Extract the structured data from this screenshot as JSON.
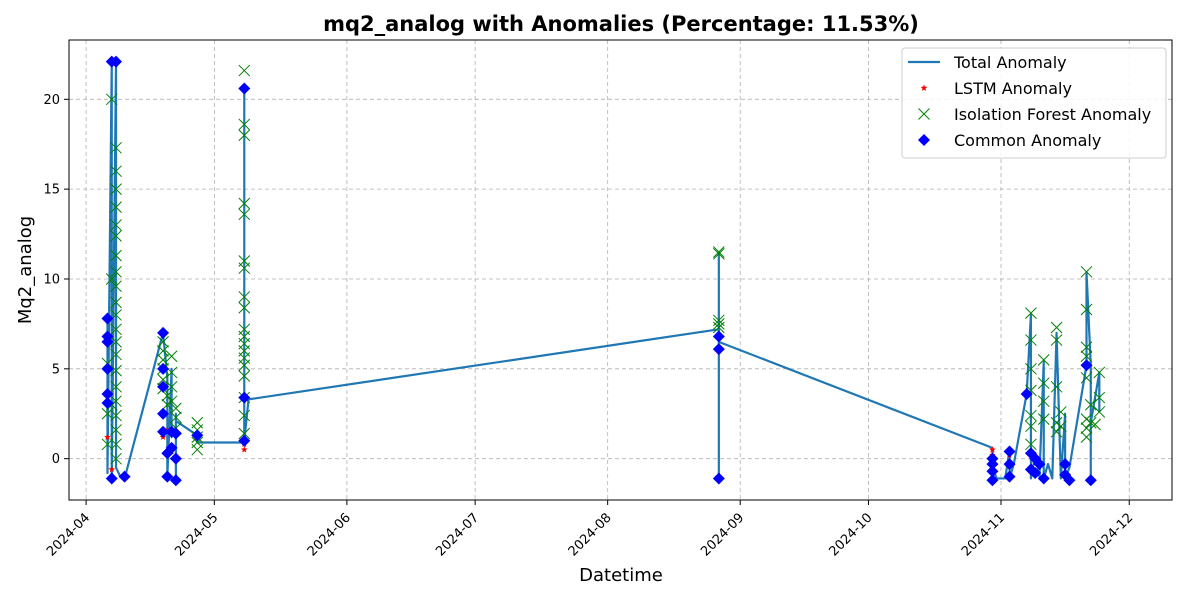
{
  "chart_data": {
    "type": "line",
    "title": "mq2_analog with Anomalies (Percentage: 11.53%)",
    "xlabel": "Datetime",
    "ylabel": "Mq2_analog",
    "xlim": [
      "2024-03-28",
      "2024-12-11"
    ],
    "ylim": [
      -2.3,
      23.3
    ],
    "x_ticks": [
      "2024-04",
      "2024-05",
      "2024-06",
      "2024-07",
      "2024-08",
      "2024-09",
      "2024-10",
      "2024-11",
      "2024-12"
    ],
    "y_ticks": [
      0,
      5,
      10,
      15,
      20
    ],
    "grid": true,
    "legend": {
      "placement": "top-right",
      "entries": [
        {
          "name": "Total Anomaly",
          "marker": "line",
          "color": "#1f77b4"
        },
        {
          "name": "LSTM Anomaly",
          "marker": "star",
          "color": "#ff0000"
        },
        {
          "name": "Isolation Forest Anomaly",
          "marker": "x",
          "color": "#008000"
        },
        {
          "name": "Common Anomaly",
          "marker": "diamond",
          "color": "#0000ff"
        }
      ]
    },
    "series": [
      {
        "name": "Total Anomaly",
        "color": "#1f77b4",
        "points": [
          [
            "2024-04-06",
            7.8
          ],
          [
            "2024-04-06",
            -0.8
          ],
          [
            "2024-04-07",
            22.1
          ],
          [
            "2024-04-07",
            -1.1
          ],
          [
            "2024-04-08",
            22.1
          ],
          [
            "2024-04-08",
            6.5
          ],
          [
            "2024-04-08",
            -0.5
          ],
          [
            "2024-04-09",
            -1.0
          ],
          [
            "2024-04-10",
            -1.1
          ],
          [
            "2024-04-19",
            7.0
          ],
          [
            "2024-04-20",
            4.5
          ],
          [
            "2024-04-20",
            -1.0
          ],
          [
            "2024-04-21",
            5.0
          ],
          [
            "2024-04-21",
            1.2
          ],
          [
            "2024-04-22",
            1.8
          ],
          [
            "2024-04-22",
            2.5
          ],
          [
            "2024-04-22",
            -1.1
          ],
          [
            "2024-04-22",
            2.1
          ],
          [
            "2024-04-27",
            1.3
          ],
          [
            "2024-04-27",
            0.9
          ],
          [
            "2024-05-08",
            0.9
          ],
          [
            "2024-05-08",
            20.6
          ],
          [
            "2024-05-08",
            1.0
          ],
          [
            "2024-05-09",
            3.3
          ],
          [
            "2024-08-27",
            7.2
          ],
          [
            "2024-08-27",
            -1.1
          ],
          [
            "2024-08-27",
            11.5
          ],
          [
            "2024-08-27",
            6.5
          ],
          [
            "2024-10-30",
            0.6
          ],
          [
            "2024-10-30",
            -0.5
          ],
          [
            "2024-10-31",
            -1.1
          ],
          [
            "2024-11-02",
            -1.1
          ],
          [
            "2024-11-03",
            0.5
          ],
          [
            "2024-11-03",
            -1.1
          ],
          [
            "2024-11-04",
            -0.3
          ],
          [
            "2024-11-07",
            3.6
          ],
          [
            "2024-11-08",
            8.0
          ],
          [
            "2024-11-08",
            -1.1
          ],
          [
            "2024-11-09",
            0.2
          ],
          [
            "2024-11-10",
            -1.0
          ],
          [
            "2024-11-11",
            5.4
          ],
          [
            "2024-11-11",
            -1.1
          ],
          [
            "2024-11-12",
            -0.3
          ],
          [
            "2024-11-13",
            -1.1
          ],
          [
            "2024-11-14",
            7.0
          ],
          [
            "2024-11-15",
            -1.1
          ],
          [
            "2024-11-16",
            2.5
          ],
          [
            "2024-11-16",
            -1.1
          ],
          [
            "2024-11-17",
            -0.5
          ],
          [
            "2024-11-21",
            5.2
          ],
          [
            "2024-11-21",
            10.4
          ],
          [
            "2024-11-22",
            5.2
          ],
          [
            "2024-11-22",
            -1.1
          ],
          [
            "2024-11-22",
            2.0
          ],
          [
            "2024-11-24",
            4.8
          ],
          [
            "2024-11-24",
            2.6
          ]
        ]
      },
      {
        "name": "Isolation Forest Anomaly",
        "color": "#008000",
        "points": [
          [
            "2024-04-06",
            5.3
          ],
          [
            "2024-04-06",
            2.5
          ],
          [
            "2024-04-06",
            0.8
          ],
          [
            "2024-04-07",
            20.0
          ],
          [
            "2024-04-07",
            10.0
          ],
          [
            "2024-04-07",
            3.0
          ],
          [
            "2024-04-08",
            17.3
          ],
          [
            "2024-04-08",
            16.0
          ],
          [
            "2024-04-08",
            15.0
          ],
          [
            "2024-04-08",
            14.0
          ],
          [
            "2024-04-08",
            13.0
          ],
          [
            "2024-04-08",
            12.4
          ],
          [
            "2024-04-08",
            11.3
          ],
          [
            "2024-04-08",
            10.4
          ],
          [
            "2024-04-08",
            9.6
          ],
          [
            "2024-04-08",
            8.7
          ],
          [
            "2024-04-08",
            8.0
          ],
          [
            "2024-04-08",
            7.2
          ],
          [
            "2024-04-08",
            6.5
          ],
          [
            "2024-04-08",
            5.8
          ],
          [
            "2024-04-08",
            4.9
          ],
          [
            "2024-04-08",
            4.0
          ],
          [
            "2024-04-08",
            3.2
          ],
          [
            "2024-04-08",
            2.4
          ],
          [
            "2024-04-08",
            1.6
          ],
          [
            "2024-04-08",
            0.8
          ],
          [
            "2024-04-08",
            0.0
          ],
          [
            "2024-04-19",
            6.5
          ],
          [
            "2024-04-19",
            6.0
          ],
          [
            "2024-04-19",
            5.5
          ],
          [
            "2024-04-19",
            5.0
          ],
          [
            "2024-04-19",
            4.4
          ],
          [
            "2024-04-19",
            3.9
          ],
          [
            "2024-04-20",
            3.5
          ],
          [
            "2024-04-20",
            3.0
          ],
          [
            "2024-04-21",
            5.7
          ],
          [
            "2024-04-21",
            4.8
          ],
          [
            "2024-04-21",
            4.0
          ],
          [
            "2024-04-21",
            3.2
          ],
          [
            "2024-04-22",
            2.8
          ],
          [
            "2024-04-22",
            2.3
          ],
          [
            "2024-04-22",
            1.7
          ],
          [
            "2024-04-27",
            2.0
          ],
          [
            "2024-04-27",
            1.6
          ],
          [
            "2024-04-27",
            1.2
          ],
          [
            "2024-04-27",
            0.9
          ],
          [
            "2024-04-27",
            0.5
          ],
          [
            "2024-05-08",
            21.6
          ],
          [
            "2024-05-08",
            18.6
          ],
          [
            "2024-05-08",
            18.0
          ],
          [
            "2024-05-08",
            14.2
          ],
          [
            "2024-05-08",
            13.6
          ],
          [
            "2024-05-08",
            11.0
          ],
          [
            "2024-05-08",
            10.6
          ],
          [
            "2024-05-08",
            9.0
          ],
          [
            "2024-05-08",
            8.4
          ],
          [
            "2024-05-08",
            7.2
          ],
          [
            "2024-05-08",
            6.8
          ],
          [
            "2024-05-08",
            6.4
          ],
          [
            "2024-05-08",
            6.0
          ],
          [
            "2024-05-08",
            5.6
          ],
          [
            "2024-05-08",
            5.2
          ],
          [
            "2024-05-08",
            4.6
          ],
          [
            "2024-05-08",
            3.4
          ],
          [
            "2024-05-08",
            2.4
          ],
          [
            "2024-05-08",
            1.4
          ],
          [
            "2024-08-27",
            11.5
          ],
          [
            "2024-08-27",
            11.4
          ],
          [
            "2024-08-27",
            7.7
          ],
          [
            "2024-08-27",
            7.5
          ],
          [
            "2024-08-27",
            7.3
          ],
          [
            "2024-11-08",
            8.1
          ],
          [
            "2024-11-08",
            6.6
          ],
          [
            "2024-11-08",
            5.0
          ],
          [
            "2024-11-08",
            3.8
          ],
          [
            "2024-11-08",
            2.4
          ],
          [
            "2024-11-08",
            1.8
          ],
          [
            "2024-11-08",
            0.8
          ],
          [
            "2024-11-11",
            5.5
          ],
          [
            "2024-11-11",
            4.2
          ],
          [
            "2024-11-11",
            3.2
          ],
          [
            "2024-11-11",
            2.2
          ],
          [
            "2024-11-14",
            7.3
          ],
          [
            "2024-11-14",
            6.6
          ],
          [
            "2024-11-14",
            4.0
          ],
          [
            "2024-11-14",
            2.0
          ],
          [
            "2024-11-14",
            1.5
          ],
          [
            "2024-11-15",
            2.6
          ],
          [
            "2024-11-15",
            1.8
          ],
          [
            "2024-11-21",
            10.4
          ],
          [
            "2024-11-21",
            8.3
          ],
          [
            "2024-11-21",
            6.2
          ],
          [
            "2024-11-21",
            5.7
          ],
          [
            "2024-11-21",
            4.5
          ],
          [
            "2024-11-21",
            2.2
          ],
          [
            "2024-11-21",
            1.7
          ],
          [
            "2024-11-21",
            1.2
          ],
          [
            "2024-11-22",
            3.0
          ],
          [
            "2024-11-22",
            2.0
          ],
          [
            "2024-11-24",
            4.8
          ],
          [
            "2024-11-24",
            3.4
          ],
          [
            "2024-11-24",
            2.6
          ],
          [
            "2024-11-23",
            1.9
          ]
        ]
      },
      {
        "name": "LSTM Anomaly",
        "color": "#ff0000",
        "points": [
          [
            "2024-04-06",
            1.2
          ],
          [
            "2024-04-07",
            -0.6
          ],
          [
            "2024-04-19",
            1.2
          ],
          [
            "2024-04-20",
            1.6
          ],
          [
            "2024-04-21",
            0.4
          ],
          [
            "2024-05-08",
            0.5
          ],
          [
            "2024-05-08",
            0.8
          ],
          [
            "2024-10-30",
            0.5
          ],
          [
            "2024-10-30",
            0.2
          ],
          [
            "2024-11-03",
            0.2
          ],
          [
            "2024-11-09",
            -0.2
          ]
        ]
      },
      {
        "name": "Common Anomaly",
        "color": "#0000ff",
        "points": [
          [
            "2024-04-06",
            7.8
          ],
          [
            "2024-04-06",
            6.8
          ],
          [
            "2024-04-06",
            5.0
          ],
          [
            "2024-04-06",
            3.6
          ],
          [
            "2024-04-06",
            3.1
          ],
          [
            "2024-04-06",
            6.5
          ],
          [
            "2024-04-07",
            22.1
          ],
          [
            "2024-04-07",
            -1.1
          ],
          [
            "2024-04-08",
            22.1
          ],
          [
            "2024-04-10",
            -1.0
          ],
          [
            "2024-04-19",
            7.0
          ],
          [
            "2024-04-19",
            5.0
          ],
          [
            "2024-04-19",
            4.0
          ],
          [
            "2024-04-19",
            2.5
          ],
          [
            "2024-04-19",
            1.5
          ],
          [
            "2024-04-20",
            0.3
          ],
          [
            "2024-04-20",
            -1.0
          ],
          [
            "2024-04-21",
            1.5
          ],
          [
            "2024-04-21",
            0.6
          ],
          [
            "2024-04-22",
            1.4
          ],
          [
            "2024-04-22",
            0.0
          ],
          [
            "2024-04-22",
            -1.2
          ],
          [
            "2024-04-27",
            1.3
          ],
          [
            "2024-05-08",
            20.6
          ],
          [
            "2024-05-08",
            3.4
          ],
          [
            "2024-05-08",
            1.0
          ],
          [
            "2024-08-27",
            6.8
          ],
          [
            "2024-08-27",
            6.1
          ],
          [
            "2024-08-27",
            -1.1
          ],
          [
            "2024-10-30",
            0.0
          ],
          [
            "2024-10-30",
            -0.3
          ],
          [
            "2024-10-30",
            -0.7
          ],
          [
            "2024-10-30",
            -1.2
          ],
          [
            "2024-11-03",
            0.4
          ],
          [
            "2024-11-03",
            -0.3
          ],
          [
            "2024-11-03",
            -1.0
          ],
          [
            "2024-11-07",
            3.6
          ],
          [
            "2024-11-08",
            0.3
          ],
          [
            "2024-11-08",
            -0.6
          ],
          [
            "2024-11-09",
            0.0
          ],
          [
            "2024-11-09",
            -0.8
          ],
          [
            "2024-11-10",
            -0.3
          ],
          [
            "2024-11-11",
            -1.1
          ],
          [
            "2024-11-16",
            -0.3
          ],
          [
            "2024-11-16",
            -0.9
          ],
          [
            "2024-11-17",
            -1.2
          ],
          [
            "2024-11-21",
            5.2
          ],
          [
            "2024-11-22",
            -1.2
          ]
        ]
      }
    ]
  }
}
